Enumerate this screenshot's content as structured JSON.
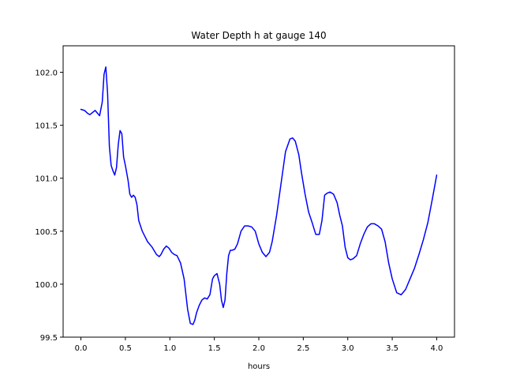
{
  "chart_data": {
    "type": "line",
    "title": "Water Depth h at gauge 140",
    "xlabel": "hours",
    "ylabel": "",
    "xlim": [
      -0.2,
      4.2
    ],
    "ylim": [
      99.5,
      102.25
    ],
    "xticks": [
      0.0,
      0.5,
      1.0,
      1.5,
      2.0,
      2.5,
      3.0,
      3.5,
      4.0
    ],
    "xtick_labels": [
      "0.0",
      "0.5",
      "1.0",
      "1.5",
      "2.0",
      "2.5",
      "3.0",
      "3.5",
      "4.0"
    ],
    "yticks": [
      99.5,
      100.0,
      100.5,
      101.0,
      101.5,
      102.0
    ],
    "ytick_labels": [
      "99.5",
      "100.0",
      "100.5",
      "101.0",
      "101.5",
      "102.0"
    ],
    "grid": false,
    "series": [
      {
        "color": "#0000ff",
        "x": [
          0.0,
          0.04,
          0.08,
          0.1,
          0.13,
          0.16,
          0.19,
          0.21,
          0.24,
          0.26,
          0.28,
          0.3,
          0.32,
          0.34,
          0.36,
          0.38,
          0.4,
          0.42,
          0.44,
          0.46,
          0.48,
          0.5,
          0.53,
          0.55,
          0.57,
          0.59,
          0.61,
          0.63,
          0.65,
          0.67,
          0.69,
          0.72,
          0.75,
          0.8,
          0.85,
          0.88,
          0.9,
          0.93,
          0.96,
          0.99,
          1.02,
          1.05,
          1.08,
          1.12,
          1.16,
          1.2,
          1.23,
          1.26,
          1.28,
          1.3,
          1.33,
          1.36,
          1.39,
          1.42,
          1.45,
          1.48,
          1.5,
          1.53,
          1.56,
          1.58,
          1.6,
          1.62,
          1.64,
          1.66,
          1.68,
          1.7,
          1.73,
          1.76,
          1.8,
          1.84,
          1.88,
          1.92,
          1.96,
          2.0,
          2.04,
          2.08,
          2.12,
          2.15,
          2.2,
          2.25,
          2.3,
          2.35,
          2.38,
          2.41,
          2.45,
          2.48,
          2.52,
          2.56,
          2.6,
          2.64,
          2.68,
          2.71,
          2.74,
          2.77,
          2.8,
          2.84,
          2.88,
          2.91,
          2.94,
          2.97,
          3.0,
          3.03,
          3.06,
          3.1,
          3.14,
          3.18,
          3.22,
          3.26,
          3.3,
          3.34,
          3.38,
          3.42,
          3.46,
          3.5,
          3.55,
          3.6,
          3.65,
          3.7,
          3.75,
          3.8,
          3.85,
          3.9,
          3.95,
          4.0
        ],
        "y": [
          101.65,
          101.64,
          101.61,
          101.6,
          101.62,
          101.64,
          101.61,
          101.59,
          101.72,
          101.98,
          102.05,
          101.8,
          101.3,
          101.12,
          101.07,
          101.03,
          101.1,
          101.32,
          101.45,
          101.42,
          101.2,
          101.12,
          100.98,
          100.85,
          100.82,
          100.84,
          100.82,
          100.75,
          100.6,
          100.55,
          100.5,
          100.45,
          100.4,
          100.35,
          100.28,
          100.26,
          100.28,
          100.33,
          100.36,
          100.34,
          100.3,
          100.28,
          100.27,
          100.2,
          100.05,
          99.76,
          99.63,
          99.62,
          99.66,
          99.73,
          99.8,
          99.85,
          99.87,
          99.86,
          99.9,
          100.05,
          100.08,
          100.1,
          100.0,
          99.85,
          99.78,
          99.85,
          100.1,
          100.27,
          100.32,
          100.32,
          100.33,
          100.38,
          100.5,
          100.55,
          100.55,
          100.54,
          100.5,
          100.38,
          100.3,
          100.26,
          100.3,
          100.4,
          100.65,
          100.95,
          101.25,
          101.37,
          101.38,
          101.35,
          101.22,
          101.05,
          100.85,
          100.68,
          100.58,
          100.47,
          100.47,
          100.6,
          100.84,
          100.86,
          100.87,
          100.85,
          100.77,
          100.65,
          100.55,
          100.35,
          100.25,
          100.23,
          100.24,
          100.27,
          100.38,
          100.47,
          100.54,
          100.57,
          100.57,
          100.55,
          100.52,
          100.4,
          100.2,
          100.05,
          99.92,
          99.9,
          99.95,
          100.05,
          100.15,
          100.28,
          100.42,
          100.58,
          100.8,
          101.03
        ]
      }
    ]
  }
}
